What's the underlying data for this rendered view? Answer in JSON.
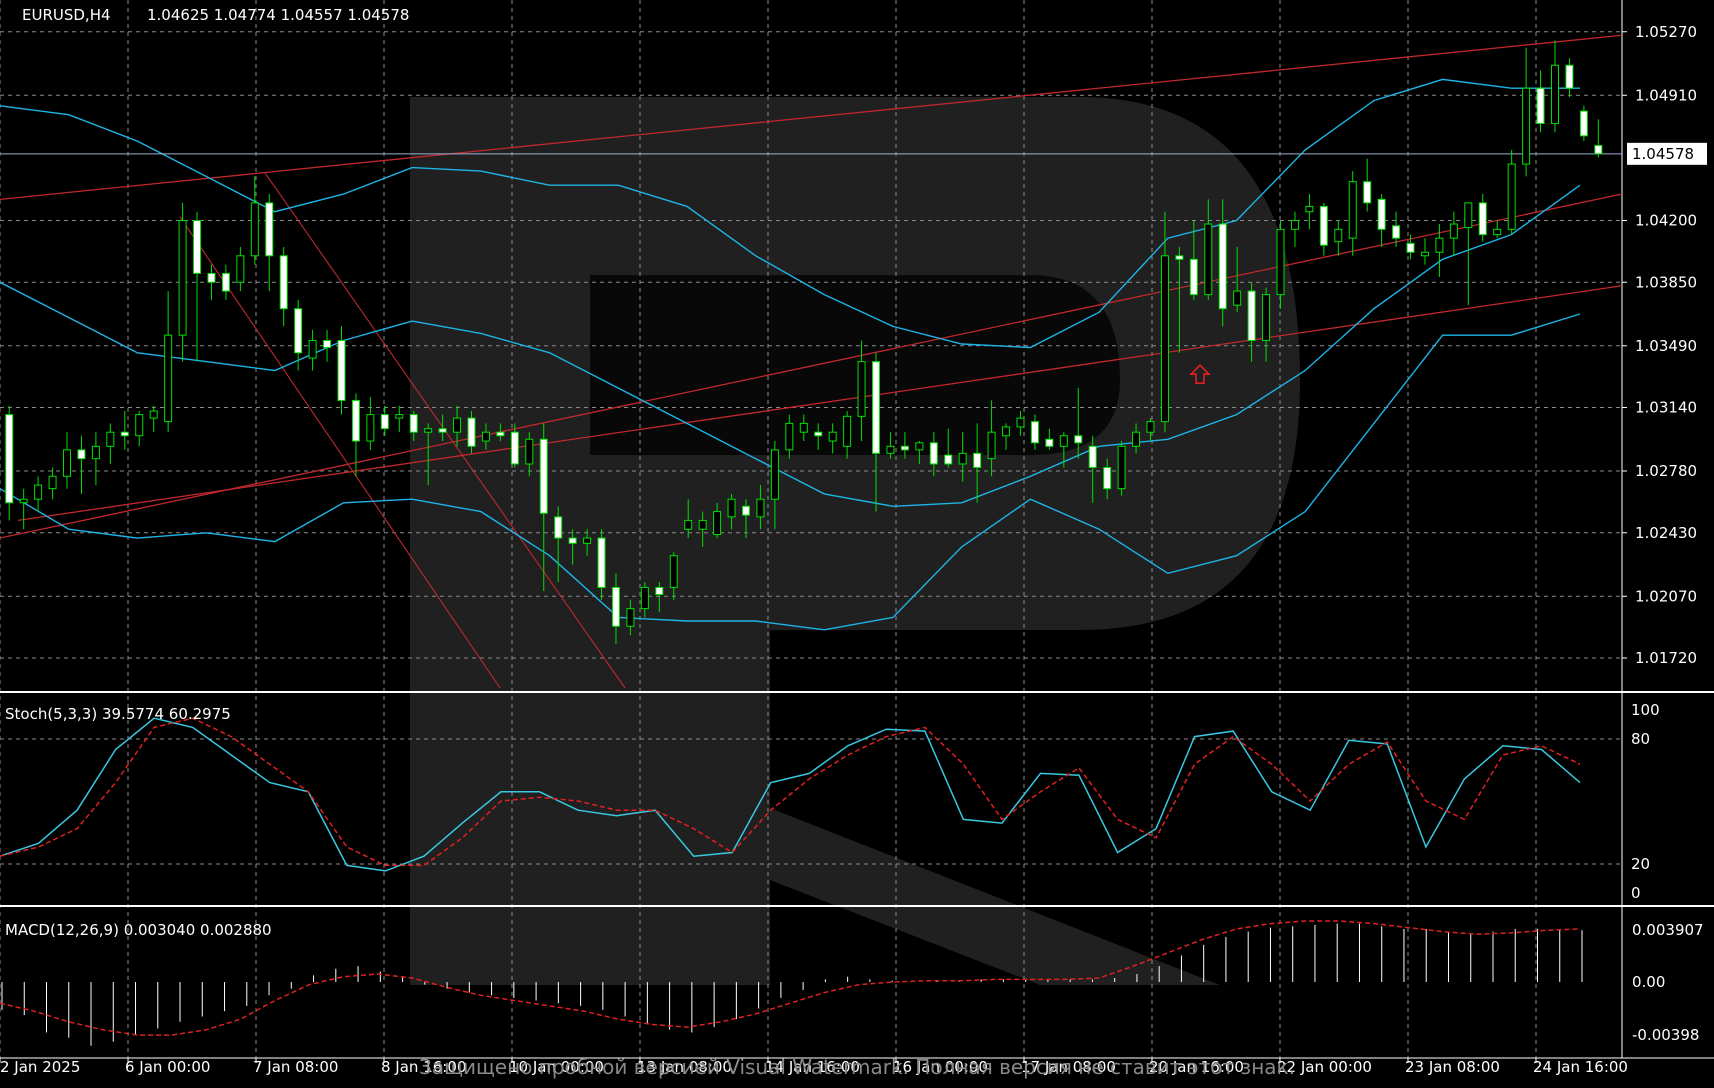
{
  "chart_data": [
    {
      "type": "candlestick",
      "symbol_header": "EURUSD,H4",
      "ohlc_header": "1.04625 1.04774 1.04557 1.04578",
      "current_price_label": "1.04578",
      "current_price": 1.04578,
      "ylim": [
        1.0155,
        1.0545
      ],
      "y_ticks": [
        "1.05270",
        "1.04910",
        "1.04200",
        "1.03850",
        "1.03490",
        "1.03140",
        "1.02780",
        "1.02430",
        "1.02070",
        "1.01720"
      ],
      "x_ticks": [
        "2 Jan 2025",
        "6 Jan 00:00",
        "7 Jan 08:00",
        "8 Jan 16:00",
        "10 Jan 00:00",
        "13 Jan 08:00",
        "14 Jan 16:00",
        "16 Jan 00:00",
        "17 Jan 08:00",
        "20 Jan 16:00",
        "22 Jan 00:00",
        "23 Jan 08:00",
        "24 Jan 16:00"
      ],
      "grid": true,
      "candles": [
        {
          "o": 1.031,
          "h": 1.0315,
          "l": 1.025,
          "c": 1.026
        },
        {
          "o": 1.026,
          "h": 1.0268,
          "l": 1.0245,
          "c": 1.0262
        },
        {
          "o": 1.0262,
          "h": 1.0275,
          "l": 1.0255,
          "c": 1.027
        },
        {
          "o": 1.0268,
          "h": 1.028,
          "l": 1.0262,
          "c": 1.0275
        },
        {
          "o": 1.0275,
          "h": 1.03,
          "l": 1.0268,
          "c": 1.029
        },
        {
          "o": 1.029,
          "h": 1.0298,
          "l": 1.0265,
          "c": 1.0285
        },
        {
          "o": 1.0285,
          "h": 1.03,
          "l": 1.027,
          "c": 1.0292
        },
        {
          "o": 1.0292,
          "h": 1.0305,
          "l": 1.0282,
          "c": 1.03
        },
        {
          "o": 1.03,
          "h": 1.0312,
          "l": 1.029,
          "c": 1.0298
        },
        {
          "o": 1.0298,
          "h": 1.0312,
          "l": 1.0292,
          "c": 1.031
        },
        {
          "o": 1.0308,
          "h": 1.0315,
          "l": 1.03,
          "c": 1.0312
        },
        {
          "o": 1.0306,
          "h": 1.038,
          "l": 1.03,
          "c": 1.0355
        },
        {
          "o": 1.0355,
          "h": 1.043,
          "l": 1.034,
          "c": 1.042
        },
        {
          "o": 1.042,
          "h": 1.0425,
          "l": 1.034,
          "c": 1.039
        },
        {
          "o": 1.039,
          "h": 1.0395,
          "l": 1.0375,
          "c": 1.0385
        },
        {
          "o": 1.039,
          "h": 1.0395,
          "l": 1.0375,
          "c": 1.038
        },
        {
          "o": 1.0385,
          "h": 1.0405,
          "l": 1.038,
          "c": 1.04
        },
        {
          "o": 1.04,
          "h": 1.0445,
          "l": 1.0395,
          "c": 1.043
        },
        {
          "o": 1.043,
          "h": 1.0435,
          "l": 1.038,
          "c": 1.04
        },
        {
          "o": 1.04,
          "h": 1.0405,
          "l": 1.036,
          "c": 1.037
        },
        {
          "o": 1.037,
          "h": 1.0375,
          "l": 1.0335,
          "c": 1.0345
        },
        {
          "o": 1.0342,
          "h": 1.0358,
          "l": 1.0335,
          "c": 1.0352
        },
        {
          "o": 1.0352,
          "h": 1.0358,
          "l": 1.034,
          "c": 1.0348
        },
        {
          "o": 1.0352,
          "h": 1.036,
          "l": 1.031,
          "c": 1.0318
        },
        {
          "o": 1.0318,
          "h": 1.0322,
          "l": 1.0275,
          "c": 1.0295
        },
        {
          "o": 1.0295,
          "h": 1.032,
          "l": 1.029,
          "c": 1.031
        },
        {
          "o": 1.031,
          "h": 1.0315,
          "l": 1.0298,
          "c": 1.0302
        },
        {
          "o": 1.0308,
          "h": 1.0315,
          "l": 1.03,
          "c": 1.031
        },
        {
          "o": 1.031,
          "h": 1.0312,
          "l": 1.0295,
          "c": 1.03
        },
        {
          "o": 1.03,
          "h": 1.0305,
          "l": 1.027,
          "c": 1.0302
        },
        {
          "o": 1.0302,
          "h": 1.031,
          "l": 1.0295,
          "c": 1.03
        },
        {
          "o": 1.03,
          "h": 1.0315,
          "l": 1.0292,
          "c": 1.0308
        },
        {
          "o": 1.0308,
          "h": 1.0312,
          "l": 1.0288,
          "c": 1.0292
        },
        {
          "o": 1.0295,
          "h": 1.0305,
          "l": 1.029,
          "c": 1.03
        },
        {
          "o": 1.03,
          "h": 1.0305,
          "l": 1.0295,
          "c": 1.0298
        },
        {
          "o": 1.03,
          "h": 1.0305,
          "l": 1.028,
          "c": 1.0282
        },
        {
          "o": 1.0282,
          "h": 1.03,
          "l": 1.0275,
          "c": 1.0296
        },
        {
          "o": 1.0296,
          "h": 1.0305,
          "l": 1.021,
          "c": 1.0254
        },
        {
          "o": 1.0252,
          "h": 1.0258,
          "l": 1.0215,
          "c": 1.024
        },
        {
          "o": 1.024,
          "h": 1.0245,
          "l": 1.0225,
          "c": 1.0237
        },
        {
          "o": 1.0237,
          "h": 1.0245,
          "l": 1.023,
          "c": 1.024
        },
        {
          "o": 1.024,
          "h": 1.0245,
          "l": 1.0205,
          "c": 1.0212
        },
        {
          "o": 1.0212,
          "h": 1.022,
          "l": 1.018,
          "c": 1.019
        },
        {
          "o": 1.019,
          "h": 1.0205,
          "l": 1.0185,
          "c": 1.02
        },
        {
          "o": 1.02,
          "h": 1.0215,
          "l": 1.0195,
          "c": 1.0212
        },
        {
          "o": 1.0212,
          "h": 1.0215,
          "l": 1.0198,
          "c": 1.0208
        },
        {
          "o": 1.0212,
          "h": 1.0232,
          "l": 1.0205,
          "c": 1.023
        },
        {
          "o": 1.0245,
          "h": 1.0262,
          "l": 1.024,
          "c": 1.025
        },
        {
          "o": 1.0245,
          "h": 1.0255,
          "l": 1.0235,
          "c": 1.025
        },
        {
          "o": 1.0242,
          "h": 1.026,
          "l": 1.024,
          "c": 1.0255
        },
        {
          "o": 1.0252,
          "h": 1.0265,
          "l": 1.0245,
          "c": 1.0262
        },
        {
          "o": 1.0258,
          "h": 1.0262,
          "l": 1.024,
          "c": 1.0253
        },
        {
          "o": 1.0252,
          "h": 1.027,
          "l": 1.0245,
          "c": 1.0262
        },
        {
          "o": 1.0262,
          "h": 1.0295,
          "l": 1.0245,
          "c": 1.029
        },
        {
          "o": 1.029,
          "h": 1.031,
          "l": 1.0285,
          "c": 1.0305
        },
        {
          "o": 1.03,
          "h": 1.031,
          "l": 1.0295,
          "c": 1.0305
        },
        {
          "o": 1.03,
          "h": 1.0305,
          "l": 1.029,
          "c": 1.0298
        },
        {
          "o": 1.0295,
          "h": 1.0305,
          "l": 1.0288,
          "c": 1.03
        },
        {
          "o": 1.0292,
          "h": 1.0312,
          "l": 1.0285,
          "c": 1.0309
        },
        {
          "o": 1.0309,
          "h": 1.0352,
          "l": 1.0295,
          "c": 1.034
        },
        {
          "o": 1.034,
          "h": 1.0345,
          "l": 1.0255,
          "c": 1.0288
        },
        {
          "o": 1.0288,
          "h": 1.03,
          "l": 1.0285,
          "c": 1.0292
        },
        {
          "o": 1.0292,
          "h": 1.03,
          "l": 1.0285,
          "c": 1.029
        },
        {
          "o": 1.029,
          "h": 1.0295,
          "l": 1.0282,
          "c": 1.0294
        },
        {
          "o": 1.0294,
          "h": 1.03,
          "l": 1.0275,
          "c": 1.0282
        },
        {
          "o": 1.0287,
          "h": 1.0302,
          "l": 1.028,
          "c": 1.0282
        },
        {
          "o": 1.0282,
          "h": 1.03,
          "l": 1.0272,
          "c": 1.0288
        },
        {
          "o": 1.0288,
          "h": 1.0305,
          "l": 1.026,
          "c": 1.028
        },
        {
          "o": 1.0285,
          "h": 1.0318,
          "l": 1.0275,
          "c": 1.03
        },
        {
          "o": 1.0298,
          "h": 1.0305,
          "l": 1.029,
          "c": 1.0303
        },
        {
          "o": 1.0303,
          "h": 1.0312,
          "l": 1.0298,
          "c": 1.0308
        },
        {
          "o": 1.0306,
          "h": 1.031,
          "l": 1.029,
          "c": 1.0294
        },
        {
          "o": 1.0296,
          "h": 1.0302,
          "l": 1.029,
          "c": 1.0292
        },
        {
          "o": 1.0292,
          "h": 1.03,
          "l": 1.028,
          "c": 1.0298
        },
        {
          "o": 1.0298,
          "h": 1.0325,
          "l": 1.0285,
          "c": 1.0294
        },
        {
          "o": 1.0292,
          "h": 1.0298,
          "l": 1.026,
          "c": 1.028
        },
        {
          "o": 1.028,
          "h": 1.0285,
          "l": 1.0262,
          "c": 1.0268
        },
        {
          "o": 1.0268,
          "h": 1.0295,
          "l": 1.0264,
          "c": 1.0292
        },
        {
          "o": 1.0292,
          "h": 1.0305,
          "l": 1.0288,
          "c": 1.03
        },
        {
          "o": 1.03,
          "h": 1.0308,
          "l": 1.0295,
          "c": 1.0306
        },
        {
          "o": 1.0306,
          "h": 1.0425,
          "l": 1.03,
          "c": 1.04
        },
        {
          "o": 1.04,
          "h": 1.0405,
          "l": 1.0345,
          "c": 1.0398
        },
        {
          "o": 1.0398,
          "h": 1.042,
          "l": 1.0375,
          "c": 1.0378
        },
        {
          "o": 1.0378,
          "h": 1.0432,
          "l": 1.0375,
          "c": 1.0418
        },
        {
          "o": 1.0418,
          "h": 1.0432,
          "l": 1.036,
          "c": 1.037
        },
        {
          "o": 1.0372,
          "h": 1.0405,
          "l": 1.0368,
          "c": 1.038
        },
        {
          "o": 1.038,
          "h": 1.0385,
          "l": 1.034,
          "c": 1.0352
        },
        {
          "o": 1.0352,
          "h": 1.0382,
          "l": 1.034,
          "c": 1.0378
        },
        {
          "o": 1.0378,
          "h": 1.042,
          "l": 1.037,
          "c": 1.0415
        },
        {
          "o": 1.0415,
          "h": 1.0425,
          "l": 1.0405,
          "c": 1.042
        },
        {
          "o": 1.0425,
          "h": 1.0435,
          "l": 1.0415,
          "c": 1.0428
        },
        {
          "o": 1.0428,
          "h": 1.043,
          "l": 1.04,
          "c": 1.0406
        },
        {
          "o": 1.0408,
          "h": 1.042,
          "l": 1.04,
          "c": 1.0415
        },
        {
          "o": 1.041,
          "h": 1.0448,
          "l": 1.04,
          "c": 1.0442
        },
        {
          "o": 1.0442,
          "h": 1.0455,
          "l": 1.0425,
          "c": 1.043
        },
        {
          "o": 1.0432,
          "h": 1.0435,
          "l": 1.0405,
          "c": 1.0415
        },
        {
          "o": 1.0417,
          "h": 1.0425,
          "l": 1.0405,
          "c": 1.041
        },
        {
          "o": 1.0407,
          "h": 1.0412,
          "l": 1.0398,
          "c": 1.0402
        },
        {
          "o": 1.04,
          "h": 1.041,
          "l": 1.0395,
          "c": 1.0402
        },
        {
          "o": 1.0402,
          "h": 1.0418,
          "l": 1.0388,
          "c": 1.041
        },
        {
          "o": 1.041,
          "h": 1.0425,
          "l": 1.04,
          "c": 1.0418
        },
        {
          "o": 1.0416,
          "h": 1.043,
          "l": 1.0372,
          "c": 1.043
        },
        {
          "o": 1.043,
          "h": 1.0435,
          "l": 1.0408,
          "c": 1.0412
        },
        {
          "o": 1.0412,
          "h": 1.042,
          "l": 1.041,
          "c": 1.0415
        },
        {
          "o": 1.0415,
          "h": 1.046,
          "l": 1.0412,
          "c": 1.0452
        },
        {
          "o": 1.0452,
          "h": 1.0518,
          "l": 1.0445,
          "c": 1.0495
        },
        {
          "o": 1.0495,
          "h": 1.0505,
          "l": 1.047,
          "c": 1.0475
        },
        {
          "o": 1.0475,
          "h": 1.0522,
          "l": 1.047,
          "c": 1.0508
        },
        {
          "o": 1.0508,
          "h": 1.0512,
          "l": 1.049,
          "c": 1.0495
        },
        {
          "o": 1.0482,
          "h": 1.0485,
          "l": 1.0465,
          "c": 1.0468
        },
        {
          "o": 1.04625,
          "h": 1.04774,
          "l": 1.04557,
          "c": 1.04578
        }
      ],
      "bollinger": {
        "upper": [
          1.0485,
          1.048,
          1.0465,
          1.0445,
          1.0425,
          1.0435,
          1.045,
          1.0448,
          1.044,
          1.044,
          1.0428,
          1.04,
          1.0378,
          1.036,
          1.035,
          1.0348,
          1.0368,
          1.041,
          1.042,
          1.046,
          1.0488,
          1.05,
          1.0495,
          1.0495
        ],
        "middle": [
          1.0385,
          1.0365,
          1.0345,
          1.034,
          1.0335,
          1.0352,
          1.0363,
          1.0356,
          1.0345,
          1.0325,
          1.0305,
          1.0285,
          1.0265,
          1.0258,
          1.026,
          1.0275,
          1.0292,
          1.0296,
          1.031,
          1.0335,
          1.037,
          1.0398,
          1.0412,
          1.044
        ],
        "lower": [
          1.0268,
          1.0245,
          1.024,
          1.0243,
          1.0238,
          1.026,
          1.0262,
          1.0255,
          1.023,
          1.0195,
          1.0193,
          1.0193,
          1.0188,
          1.0195,
          1.0235,
          1.0262,
          1.0245,
          1.022,
          1.023,
          1.0255,
          1.0305,
          1.0355,
          1.0355,
          1.0367
        ]
      },
      "annotation": "buy-arrow"
    },
    {
      "type": "line",
      "title": "Stoch(5,3,3) 39.5774 60.2975",
      "ylim": [
        0,
        100
      ],
      "y_ticks": [
        "100",
        "80",
        "20",
        "0"
      ],
      "series": [
        {
          "values": [
            20,
            27,
            45,
            78,
            95,
            90,
            75,
            60,
            55,
            15,
            12,
            20,
            38,
            55,
            55,
            45,
            42,
            45,
            20,
            22,
            60,
            65,
            80,
            89,
            88,
            40,
            38,
            65,
            64,
            22,
            35,
            85,
            88,
            55,
            45,
            83,
            81,
            25,
            62,
            80,
            78,
            60
          ]
        },
        {
          "values": [
            20,
            25,
            35,
            60,
            90,
            95,
            85,
            70,
            55,
            25,
            15,
            15,
            30,
            50,
            52,
            50,
            45,
            45,
            35,
            22,
            45,
            62,
            75,
            85,
            90,
            70,
            40,
            55,
            68,
            40,
            30,
            70,
            85,
            70,
            50,
            70,
            82,
            50,
            40,
            75,
            80,
            70
          ]
        }
      ]
    },
    {
      "type": "bar",
      "title": "MACD(12,26,9) 0.003040 0.002880",
      "ylim": [
        -0.0055,
        0.0052
      ],
      "y_ticks": [
        "0.003907",
        "0.00",
        "-0.00398"
      ],
      "histogram": [
        -0.0021,
        -0.0025,
        -0.0038,
        -0.0042,
        -0.0048,
        -0.0045,
        -0.004,
        -0.0035,
        -0.003,
        -0.0026,
        -0.0022,
        -0.0018,
        -0.001,
        -0.0005,
        0.0005,
        0.001,
        0.0012,
        0.0008,
        0.0004,
        -0.0002,
        -0.0005,
        -0.0008,
        -0.001,
        -0.0012,
        -0.0014,
        -0.0016,
        -0.0018,
        -0.0021,
        -0.0026,
        -0.0032,
        -0.0036,
        -0.0038,
        -0.0034,
        -0.0028,
        -0.002,
        -0.0012,
        -0.0006,
        0.0002,
        0.0004,
        0.0002,
        0.0001,
        0.0,
        0.0001,
        0.0001,
        0.0002,
        0.0002,
        0.0002,
        0.0002,
        0.0002,
        0.0002,
        0.0003,
        0.0006,
        0.0012,
        0.002,
        0.0028,
        0.0034,
        0.0038,
        0.0041,
        0.0042,
        0.0043,
        0.0044,
        0.0044,
        0.0042,
        0.004,
        0.004,
        0.0038,
        0.0036,
        0.0038,
        0.004,
        0.004,
        0.0039,
        0.0039
      ],
      "signal": [
        -0.0016,
        -0.0022,
        -0.003,
        -0.0036,
        -0.004,
        -0.004,
        -0.0036,
        -0.0028,
        -0.0014,
        -0.0002,
        0.0004,
        0.0006,
        0.0003,
        -0.0004,
        -0.001,
        -0.0014,
        -0.0018,
        -0.0022,
        -0.0028,
        -0.0032,
        -0.0034,
        -0.003,
        -0.0024,
        -0.0016,
        -0.0008,
        -0.0002,
        0.0,
        0.0001,
        0.0001,
        0.0002,
        0.0002,
        0.0002,
        0.0003,
        0.0012,
        0.0022,
        0.0032,
        0.004,
        0.0044,
        0.0046,
        0.0046,
        0.0044,
        0.0041,
        0.0038,
        0.0036,
        0.0037,
        0.0039,
        0.004
      ]
    }
  ],
  "watermark_text": "Защищено пробной версией Visual Watermark. Полная версия не ставит этот знак."
}
